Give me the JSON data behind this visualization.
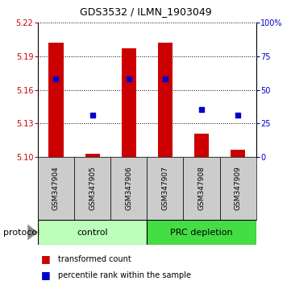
{
  "title": "GDS3532 / ILMN_1903049",
  "samples": [
    "GSM347904",
    "GSM347905",
    "GSM347906",
    "GSM347907",
    "GSM347908",
    "GSM347909"
  ],
  "bar_bottoms": [
    5.1,
    5.1,
    5.1,
    5.1,
    5.1,
    5.1
  ],
  "bar_tops": [
    5.202,
    5.103,
    5.197,
    5.202,
    5.121,
    5.106
  ],
  "blue_y": [
    5.17,
    5.137,
    5.17,
    5.17,
    5.142,
    5.137
  ],
  "ylim_left": [
    5.1,
    5.22
  ],
  "ylim_right": [
    0,
    100
  ],
  "yticks_left": [
    5.1,
    5.13,
    5.16,
    5.19,
    5.22
  ],
  "yticks_right": [
    0,
    25,
    50,
    75,
    100
  ],
  "ytick_labels_right": [
    "0",
    "25",
    "50",
    "75",
    "100%"
  ],
  "bar_color": "#cc0000",
  "blue_color": "#0000cc",
  "group_labels": [
    "control",
    "PRC depletion"
  ],
  "group_ranges": [
    [
      0,
      3
    ],
    [
      3,
      6
    ]
  ],
  "group_colors": [
    "#bbffbb",
    "#44dd44"
  ],
  "sample_bg_color": "#cccccc",
  "legend_red_label": "transformed count",
  "legend_blue_label": "percentile rank within the sample",
  "protocol_label": "protocol",
  "bar_width": 0.4
}
